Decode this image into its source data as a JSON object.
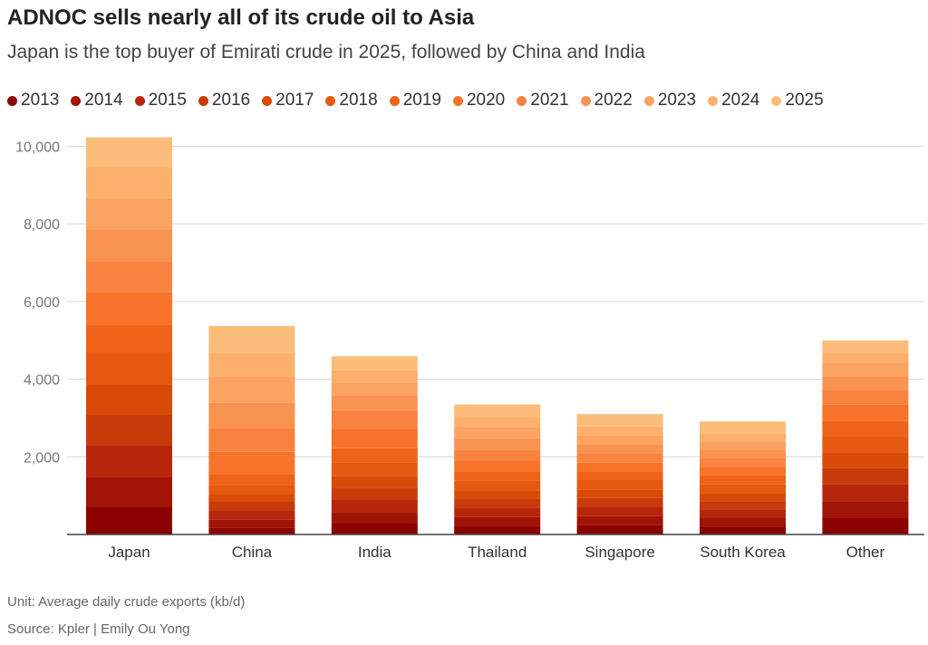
{
  "title": "ADNOC sells nearly all of its crude oil to Asia",
  "subtitle": "Japan is the top buyer of Emirati crude in 2025, followed by China and India",
  "footer": {
    "unit": "Unit: Average daily crude exports (kb/d)",
    "source": "Source: Kpler | Emily Ou Yong"
  },
  "colors": [
    "#8b0000",
    "#a11305",
    "#b7260b",
    "#c73a0a",
    "#d84a08",
    "#e55910",
    "#ef6318",
    "#f7732a",
    "#f88340",
    "#f99350",
    "#fba360",
    "#fcb06c",
    "#fdbd7a"
  ],
  "chart_data": {
    "type": "bar",
    "stacked": true,
    "categories": [
      "Japan",
      "China",
      "India",
      "Thailand",
      "Singapore",
      "South Korea",
      "Other"
    ],
    "ylim": [
      0,
      10500
    ],
    "yticks": [
      2000,
      4000,
      6000,
      8000,
      10000
    ],
    "ytick_labels": [
      "2,000",
      "4,000",
      "6,000",
      "8,000",
      "10,000"
    ],
    "grid": true,
    "legend_position": "top",
    "series": [
      {
        "name": "2013",
        "values": [
          700,
          180,
          280,
          230,
          240,
          200,
          420
        ]
      },
      {
        "name": "2014",
        "values": [
          780,
          200,
          300,
          220,
          230,
          220,
          440
        ]
      },
      {
        "name": "2015",
        "values": [
          820,
          240,
          320,
          240,
          240,
          230,
          440
        ]
      },
      {
        "name": "2016",
        "values": [
          780,
          220,
          310,
          230,
          230,
          210,
          410
        ]
      },
      {
        "name": "2017",
        "values": [
          770,
          200,
          300,
          220,
          220,
          200,
          400
        ]
      },
      {
        "name": "2018",
        "values": [
          840,
          240,
          350,
          240,
          240,
          230,
          410
        ]
      },
      {
        "name": "2019",
        "values": [
          720,
          260,
          360,
          250,
          230,
          230,
          400
        ]
      },
      {
        "name": "2020",
        "values": [
          830,
          590,
          500,
          260,
          220,
          220,
          420
        ]
      },
      {
        "name": "2021",
        "values": [
          800,
          600,
          480,
          290,
          240,
          220,
          390
        ]
      },
      {
        "name": "2022",
        "values": [
          800,
          660,
          390,
          300,
          230,
          220,
          350
        ]
      },
      {
        "name": "2023",
        "values": [
          820,
          690,
          320,
          290,
          240,
          220,
          330
        ]
      },
      {
        "name": "2024",
        "values": [
          810,
          590,
          320,
          260,
          220,
          190,
          270
        ]
      },
      {
        "name": "2025",
        "values": [
          760,
          700,
          360,
          320,
          320,
          320,
          320
        ]
      }
    ]
  }
}
